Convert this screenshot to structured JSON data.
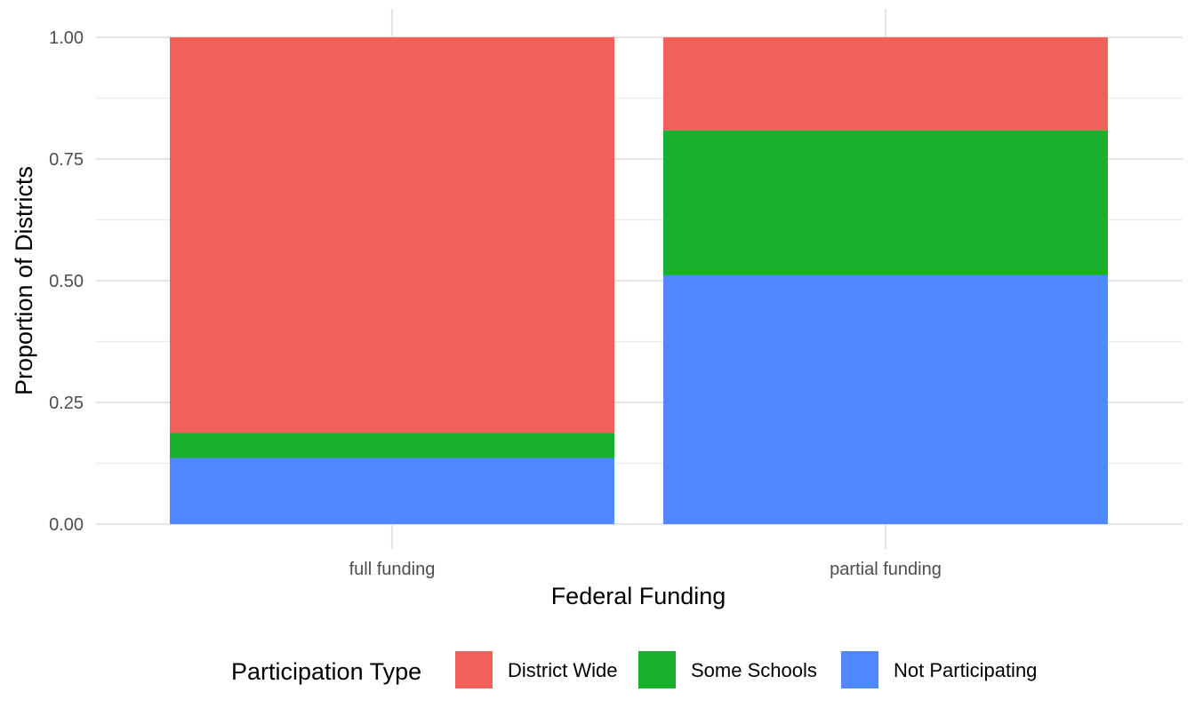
{
  "chart_data": {
    "type": "bar",
    "stacked": true,
    "title": "",
    "xlabel": "Federal Funding",
    "ylabel": "Proportion of Districts",
    "categories": [
      "full funding",
      "partial funding"
    ],
    "series": [
      {
        "name": "Not Participating",
        "color": "#5088FF",
        "values": [
          0.136,
          0.511
        ]
      },
      {
        "name": "Some Schools",
        "color": "#1AB02F",
        "values": [
          0.051,
          0.298
        ]
      },
      {
        "name": "District Wide",
        "color": "#F2605A",
        "values": [
          0.813,
          0.191
        ]
      }
    ],
    "ylim": [
      0,
      1
    ],
    "yticks": [
      "0.00",
      "0.25",
      "0.50",
      "0.75",
      "1.00"
    ],
    "grid": true,
    "legend": {
      "title": "Participation Type",
      "position": "bottom",
      "entries": [
        "District Wide",
        "Some Schools",
        "Not Participating"
      ]
    }
  }
}
